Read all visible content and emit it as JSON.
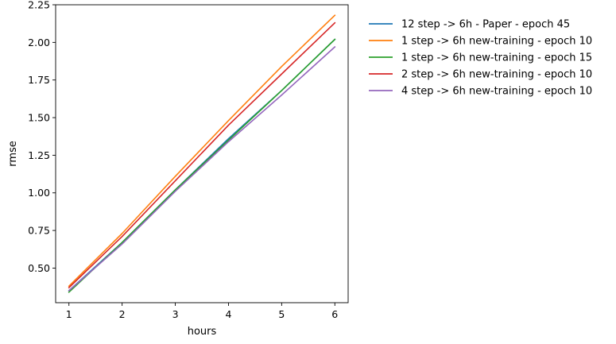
{
  "chart_data": {
    "type": "line",
    "title": "",
    "xlabel": "hours",
    "ylabel": "rmse",
    "x": [
      1,
      2,
      3,
      4,
      5,
      6
    ],
    "xlim": [
      0.75,
      6.25
    ],
    "ylim": [
      0.27,
      2.25
    ],
    "xticks": [
      1,
      2,
      3,
      4,
      5,
      6
    ],
    "yticks": [
      0.5,
      0.75,
      1.0,
      1.25,
      1.5,
      1.75,
      2.0,
      2.25
    ],
    "ytick_labels": [
      "0.50",
      "0.75",
      "1.00",
      "1.25",
      "1.50",
      "1.75",
      "2.00",
      "2.25"
    ],
    "grid": false,
    "legend_position": "outside-right",
    "series": [
      {
        "name": "12 step -> 6h - Paper - epoch 45",
        "color": "#1f77b4",
        "values": [
          0.35,
          0.67,
          1.02,
          1.36,
          1.68,
          2.02
        ]
      },
      {
        "name": "1 step -> 6h new-training - epoch 10",
        "color": "#ff7f0e",
        "values": [
          0.38,
          0.73,
          1.11,
          1.48,
          1.84,
          2.18
        ]
      },
      {
        "name": "1 step -> 6h new-training - epoch 15",
        "color": "#2ca02c",
        "values": [
          0.34,
          0.67,
          1.02,
          1.35,
          1.68,
          2.02
        ]
      },
      {
        "name": "2 step -> 6h new-training - epoch 10",
        "color": "#d62728",
        "values": [
          0.37,
          0.71,
          1.08,
          1.45,
          1.79,
          2.13
        ]
      },
      {
        "name": "4 step -> 6h new-training - epoch 10",
        "color": "#9467bd",
        "values": [
          0.35,
          0.66,
          1.01,
          1.34,
          1.65,
          1.97
        ]
      }
    ]
  }
}
